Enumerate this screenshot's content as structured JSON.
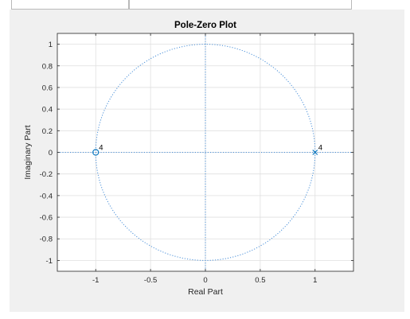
{
  "chart_data": {
    "type": "scatter",
    "title": "Pole-Zero Plot",
    "xlabel": "Real Part",
    "ylabel": "Imaginary Part",
    "xlim": [
      -1.35,
      1.35
    ],
    "ylim": [
      -1.1,
      1.1
    ],
    "xticks": [
      -1,
      -0.5,
      0,
      0.5,
      1
    ],
    "xtick_labels": [
      "-1",
      "-0.5",
      "0",
      "0.5",
      "1"
    ],
    "yticks": [
      1,
      0.8,
      0.6,
      0.4,
      0.2,
      0,
      -0.2,
      -0.4,
      -0.6,
      -0.8,
      -1
    ],
    "ytick_labels": [
      "1",
      "0.8",
      "0.6",
      "0.4",
      "0.2",
      "0",
      "-0.2",
      "-0.4",
      "-0.6",
      "-0.8",
      "-1"
    ],
    "grid": true,
    "unit_circle": true,
    "zeros": [
      {
        "x": -1,
        "y": 0,
        "multiplicity_label": "4"
      }
    ],
    "poles": [
      {
        "x": 1,
        "y": 0,
        "multiplicity_label": "4"
      }
    ],
    "colors": {
      "marker": "#0072bd",
      "guide": "#4a90d9",
      "grid": "#dfdfdf",
      "axes_bg": "#ffffff",
      "figure_bg": "#f0f0f0"
    }
  }
}
